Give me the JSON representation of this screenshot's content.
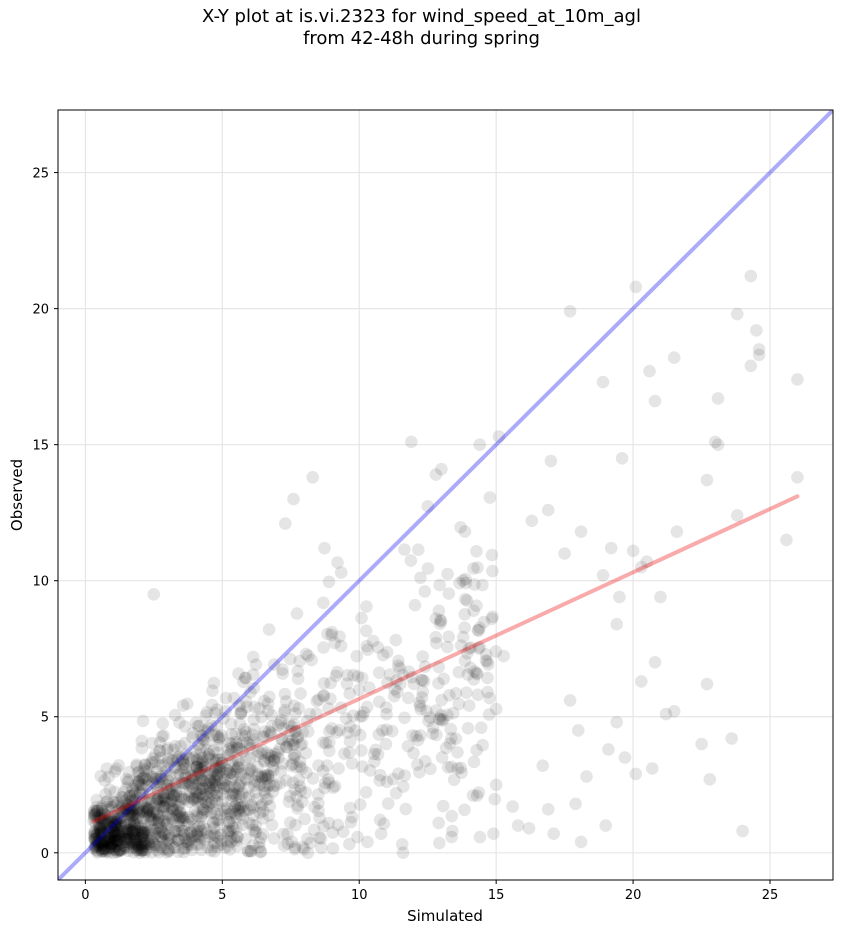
{
  "chart_data": {
    "type": "scatter",
    "title_line1": "X-Y plot at is.vi.2323 for wind_speed_at_10m_agl",
    "title_line2": "from 42-48h during spring",
    "xlabel": "Simulated",
    "ylabel": "Observed",
    "xlim": [
      -1,
      27.3
    ],
    "ylim": [
      -1,
      27.3
    ],
    "xticks": [
      0,
      5,
      10,
      15,
      20,
      25
    ],
    "yticks": [
      0,
      5,
      10,
      15,
      20,
      25
    ],
    "grid": true,
    "colors": {
      "points": "#000000",
      "identity": "#0000ee",
      "fit": "#ee0000"
    },
    "identity_line": {
      "from": [
        -1,
        -1
      ],
      "to": [
        27.3,
        27.3
      ]
    },
    "fit_line": {
      "from": [
        0.3,
        1.15
      ],
      "to": [
        26,
        13.1
      ]
    },
    "cloud": {
      "count": 1500,
      "x_range": [
        0.3,
        26.0
      ],
      "y_range": [
        0.0,
        21.2
      ]
    },
    "points": [
      [
        2.5,
        9.5
      ],
      [
        17.7,
        19.9
      ],
      [
        20.1,
        20.8
      ],
      [
        24.3,
        21.2
      ],
      [
        23.8,
        19.8
      ],
      [
        24.5,
        19.2
      ],
      [
        24.6,
        18.5
      ],
      [
        24.6,
        18.3
      ],
      [
        24.3,
        17.9
      ],
      [
        26.0,
        17.4
      ],
      [
        21.5,
        18.2
      ],
      [
        20.6,
        17.7
      ],
      [
        18.9,
        17.3
      ],
      [
        20.8,
        16.6
      ],
      [
        23.1,
        16.7
      ],
      [
        23.0,
        15.1
      ],
      [
        23.1,
        15.0
      ],
      [
        19.6,
        14.5
      ],
      [
        22.7,
        13.7
      ],
      [
        26.0,
        13.8
      ],
      [
        25.6,
        11.5
      ],
      [
        23.8,
        12.4
      ],
      [
        21.6,
        11.8
      ],
      [
        21.0,
        9.4
      ],
      [
        22.7,
        6.2
      ],
      [
        23.6,
        4.2
      ],
      [
        22.5,
        4.0
      ],
      [
        22.8,
        2.7
      ],
      [
        24.0,
        0.8
      ],
      [
        21.2,
        5.1
      ],
      [
        21.5,
        5.2
      ],
      [
        20.7,
        3.1
      ],
      [
        20.1,
        2.9
      ],
      [
        19.0,
        1.0
      ],
      [
        18.1,
        0.4
      ],
      [
        17.5,
        11.0
      ],
      [
        18.1,
        11.8
      ],
      [
        19.2,
        11.2
      ],
      [
        18.9,
        10.2
      ],
      [
        20.0,
        11.1
      ],
      [
        19.5,
        9.4
      ],
      [
        19.4,
        8.4
      ],
      [
        20.5,
        10.7
      ],
      [
        20.3,
        10.5
      ],
      [
        20.3,
        6.3
      ],
      [
        20.8,
        7.0
      ],
      [
        19.4,
        4.8
      ],
      [
        19.1,
        3.8
      ],
      [
        18.3,
        2.8
      ],
      [
        17.9,
        1.8
      ],
      [
        17.1,
        0.7
      ],
      [
        16.9,
        12.6
      ],
      [
        16.3,
        12.2
      ],
      [
        17.0,
        14.4
      ],
      [
        15.1,
        15.3
      ],
      [
        14.4,
        15.0
      ],
      [
        11.9,
        15.1
      ],
      [
        13.0,
        14.1
      ],
      [
        12.8,
        13.9
      ],
      [
        8.3,
        13.8
      ],
      [
        7.6,
        13.0
      ],
      [
        7.3,
        12.1
      ],
      [
        15.0,
        2.5
      ],
      [
        15.6,
        1.7
      ],
      [
        14.9,
        0.7
      ],
      [
        13.4,
        0.8
      ],
      [
        12.9,
        1.1
      ],
      [
        10.8,
        0.7
      ],
      [
        10.3,
        0.4
      ],
      [
        14.3,
        2.1
      ],
      [
        13.6,
        3.1
      ],
      [
        16.7,
        3.2
      ],
      [
        16.2,
        0.9
      ],
      [
        16.9,
        1.6
      ],
      [
        18.0,
        4.5
      ],
      [
        17.7,
        5.6
      ],
      [
        19.7,
        3.5
      ],
      [
        15.8,
        1.0
      ]
    ]
  }
}
